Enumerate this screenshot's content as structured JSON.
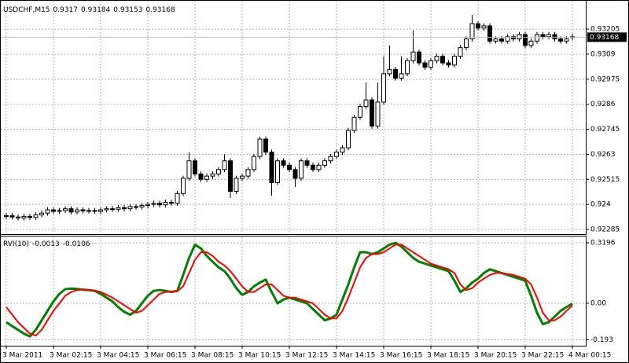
{
  "chart_data": [
    {
      "type": "candlestick",
      "title": "USDCHF,M15",
      "open": [
        0.92345,
        0.92348,
        0.92342,
        0.92338,
        0.92345,
        0.9234,
        0.92352,
        0.9236,
        0.92375,
        0.92368,
        0.92372,
        0.9238,
        0.92365,
        0.92375,
        0.9237,
        0.92372,
        0.92368,
        0.92375,
        0.9238,
        0.92378,
        0.92385,
        0.9238,
        0.9239,
        0.92388,
        0.92395,
        0.924,
        0.92405,
        0.92398,
        0.9241,
        0.92405,
        0.9245,
        0.9252,
        0.926,
        0.9254,
        0.92515,
        0.9253,
        0.9254,
        0.9256,
        0.926,
        0.9246,
        0.9252,
        0.9253,
        0.9256,
        0.9262,
        0.927,
        0.9264,
        0.925,
        0.926,
        0.9258,
        0.9256,
        0.9252,
        0.926,
        0.9258,
        0.9256,
        0.9258,
        0.926,
        0.9262,
        0.9264,
        0.9266,
        0.9274,
        0.928,
        0.9285,
        0.9288,
        0.9276,
        0.9287,
        0.93,
        0.9302,
        0.9298,
        0.93,
        0.9306,
        0.931,
        0.9305,
        0.9303,
        0.9306,
        0.9308,
        0.9305,
        0.9304,
        0.9308,
        0.9312,
        0.9316,
        0.9323,
        0.9321,
        0.9322,
        0.9315,
        0.9316,
        0.9315,
        0.9317,
        0.9316,
        0.9318,
        0.9313,
        0.9315,
        0.9318,
        0.9317,
        0.9318,
        0.9316,
        0.9315,
        0.9317
      ],
      "high": [
        0.9236,
        0.9236,
        0.92354,
        0.92357,
        0.92357,
        0.92364,
        0.92372,
        0.92387,
        0.92387,
        0.92384,
        0.92392,
        0.92392,
        0.92387,
        0.92387,
        0.92384,
        0.92384,
        0.92387,
        0.92392,
        0.92392,
        0.92397,
        0.92397,
        0.92402,
        0.92402,
        0.92407,
        0.92412,
        0.92417,
        0.92417,
        0.92422,
        0.92422,
        0.92462,
        0.92532,
        0.9264,
        0.92612,
        0.92552,
        0.92542,
        0.92552,
        0.92572,
        0.9263,
        0.92612,
        0.92532,
        0.92542,
        0.92572,
        0.92632,
        0.92712,
        0.92712,
        0.92652,
        0.92612,
        0.92612,
        0.92592,
        0.92572,
        0.92612,
        0.92612,
        0.92592,
        0.92592,
        0.92612,
        0.92632,
        0.92652,
        0.92672,
        0.92752,
        0.92812,
        0.92862,
        0.9296,
        0.92892,
        0.9296,
        0.9308,
        0.9313,
        0.93032,
        0.9308,
        0.93072,
        0.932,
        0.93112,
        0.93062,
        0.93072,
        0.93092,
        0.93092,
        0.93062,
        0.93092,
        0.93132,
        0.93172,
        0.9327,
        0.93242,
        0.93232,
        0.93232,
        0.93172,
        0.93172,
        0.93182,
        0.93182,
        0.93192,
        0.93192,
        0.93162,
        0.93192,
        0.93192,
        0.93192,
        0.93192,
        0.93172,
        0.93172,
        0.93184
      ],
      "low": [
        0.92333,
        0.9233,
        0.92326,
        0.92326,
        0.92328,
        0.92328,
        0.9234,
        0.92348,
        0.92356,
        0.92356,
        0.9236,
        0.92353,
        0.92353,
        0.92358,
        0.92358,
        0.92356,
        0.92356,
        0.92363,
        0.92366,
        0.92366,
        0.92368,
        0.92368,
        0.92376,
        0.92376,
        0.92383,
        0.92388,
        0.92386,
        0.92386,
        0.92393,
        0.92393,
        0.92438,
        0.92508,
        0.92528,
        0.92503,
        0.92503,
        0.92518,
        0.92528,
        0.92548,
        0.9243,
        0.92448,
        0.92508,
        0.92518,
        0.92548,
        0.92608,
        0.92628,
        0.9244,
        0.92488,
        0.92568,
        0.92548,
        0.9248,
        0.92508,
        0.92568,
        0.92548,
        0.92548,
        0.92568,
        0.92588,
        0.92608,
        0.92628,
        0.92648,
        0.92728,
        0.92788,
        0.92838,
        0.92748,
        0.92748,
        0.92858,
        0.92988,
        0.92968,
        0.92968,
        0.92988,
        0.93048,
        0.93038,
        0.93018,
        0.93018,
        0.93048,
        0.93038,
        0.93028,
        0.93028,
        0.93068,
        0.93108,
        0.93148,
        0.93198,
        0.93198,
        0.93138,
        0.93138,
        0.93138,
        0.93138,
        0.93148,
        0.93148,
        0.93118,
        0.93118,
        0.93138,
        0.93158,
        0.93158,
        0.93148,
        0.93138,
        0.93138,
        0.93153
      ],
      "close": [
        0.92348,
        0.92342,
        0.92338,
        0.92345,
        0.9234,
        0.92352,
        0.9236,
        0.92375,
        0.92368,
        0.92372,
        0.9238,
        0.92365,
        0.92375,
        0.9237,
        0.92372,
        0.92368,
        0.92375,
        0.9238,
        0.92378,
        0.92385,
        0.9238,
        0.9239,
        0.92388,
        0.92395,
        0.924,
        0.92405,
        0.92398,
        0.9241,
        0.92405,
        0.9245,
        0.9252,
        0.926,
        0.9254,
        0.92515,
        0.9253,
        0.9254,
        0.9256,
        0.926,
        0.9246,
        0.9252,
        0.9253,
        0.9256,
        0.9262,
        0.927,
        0.9264,
        0.925,
        0.926,
        0.9258,
        0.9256,
        0.9252,
        0.926,
        0.9258,
        0.9256,
        0.9258,
        0.926,
        0.9262,
        0.9264,
        0.9266,
        0.9274,
        0.928,
        0.9285,
        0.9288,
        0.9276,
        0.9287,
        0.93,
        0.9302,
        0.9298,
        0.93,
        0.9306,
        0.931,
        0.9305,
        0.9303,
        0.9306,
        0.9308,
        0.9305,
        0.9304,
        0.9308,
        0.9312,
        0.9316,
        0.9323,
        0.9321,
        0.9322,
        0.9315,
        0.9316,
        0.9315,
        0.9317,
        0.9316,
        0.9318,
        0.9313,
        0.9315,
        0.9318,
        0.9317,
        0.9318,
        0.9316,
        0.9315,
        0.9316,
        0.93168
      ],
      "ylim": [
        0.92267,
        0.93328
      ],
      "yticks": [
        0.92285,
        0.924,
        0.92515,
        0.9263,
        0.92745,
        0.9286,
        0.92975,
        0.9309,
        0.93205
      ],
      "grid": true
    },
    {
      "type": "line",
      "title": "RVI(10)",
      "categories": [
        "3 Mar 2011",
        null,
        null,
        null,
        null,
        null,
        null,
        null,
        "3 Mar 02:15",
        null,
        null,
        null,
        null,
        null,
        null,
        null,
        "3 Mar 04:15",
        null,
        null,
        null,
        null,
        null,
        null,
        null,
        "3 Mar 06:15",
        null,
        null,
        null,
        null,
        null,
        null,
        null,
        "3 Mar 08:15",
        null,
        null,
        null,
        null,
        null,
        null,
        null,
        "3 Mar 10:15",
        null,
        null,
        null,
        null,
        null,
        null,
        null,
        "3 Mar 12:15",
        null,
        null,
        null,
        null,
        null,
        null,
        null,
        "3 Mar 14:15",
        null,
        null,
        null,
        null,
        null,
        null,
        null,
        "3 Mar 16:15",
        null,
        null,
        null,
        null,
        null,
        null,
        null,
        "3 Mar 18:15",
        null,
        null,
        null,
        null,
        null,
        null,
        null,
        "3 Mar 20:15",
        null,
        null,
        null,
        null,
        null,
        null,
        null,
        "3 Mar 22:15",
        null,
        null,
        null,
        null,
        null,
        null,
        null,
        "4 Mar 00:15"
      ],
      "series": [
        {
          "color": "#008000",
          "values": [
            -0.1,
            -0.12,
            -0.14,
            -0.16,
            -0.175,
            -0.14,
            -0.09,
            -0.04,
            0.01,
            0.05,
            0.075,
            0.078,
            0.076,
            0.072,
            0.069,
            0.066,
            0.05,
            0.03,
            0.01,
            -0.02,
            -0.045,
            -0.06,
            -0.04,
            0.0,
            0.04,
            0.066,
            0.07,
            0.066,
            0.06,
            0.066,
            0.15,
            0.24,
            0.31,
            0.29,
            0.25,
            0.22,
            0.19,
            0.17,
            0.13,
            0.08,
            0.045,
            0.06,
            0.09,
            0.11,
            0.125,
            0.06,
            0.0,
            0.02,
            0.03,
            0.02,
            0.01,
            0.0,
            -0.03,
            -0.06,
            -0.09,
            -0.08,
            -0.06,
            0.02,
            0.1,
            0.19,
            0.27,
            0.27,
            0.26,
            0.27,
            0.29,
            0.31,
            0.32,
            0.3,
            0.27,
            0.24,
            0.22,
            0.21,
            0.2,
            0.19,
            0.18,
            0.17,
            0.12,
            0.06,
            0.08,
            0.11,
            0.13,
            0.16,
            0.18,
            0.17,
            0.16,
            0.15,
            0.14,
            0.13,
            0.12,
            0.04,
            -0.05,
            -0.11,
            -0.1,
            -0.07,
            -0.04,
            -0.02,
            -0.0013
          ]
        },
        {
          "color": "#ff0000",
          "values": [
            -0.02,
            -0.06,
            -0.1,
            -0.13,
            -0.16,
            -0.17,
            -0.14,
            -0.09,
            -0.04,
            0.0,
            0.04,
            0.06,
            0.07,
            0.074,
            0.072,
            0.068,
            0.06,
            0.045,
            0.03,
            0.01,
            -0.01,
            -0.03,
            -0.05,
            -0.04,
            -0.01,
            0.02,
            0.05,
            0.06,
            0.062,
            0.064,
            0.09,
            0.16,
            0.23,
            0.27,
            0.27,
            0.25,
            0.22,
            0.2,
            0.17,
            0.13,
            0.09,
            0.06,
            0.06,
            0.08,
            0.1,
            0.1,
            0.07,
            0.04,
            0.03,
            0.03,
            0.02,
            0.01,
            0.0,
            -0.03,
            -0.06,
            -0.08,
            -0.08,
            -0.04,
            0.03,
            0.11,
            0.19,
            0.24,
            0.26,
            0.26,
            0.27,
            0.29,
            0.31,
            0.31,
            0.29,
            0.27,
            0.25,
            0.23,
            0.21,
            0.2,
            0.19,
            0.18,
            0.16,
            0.1,
            0.07,
            0.08,
            0.11,
            0.13,
            0.15,
            0.16,
            0.16,
            0.155,
            0.15,
            0.14,
            0.13,
            0.1,
            0.03,
            -0.05,
            -0.09,
            -0.09,
            -0.07,
            -0.04,
            -0.0106
          ]
        }
      ],
      "ylim": [
        -0.224,
        0.349
      ],
      "yticks": [
        -0.193,
        {
          "value": 0,
          "label": "0.00"
        },
        0.3196
      ],
      "grid": true
    }
  ]
}
